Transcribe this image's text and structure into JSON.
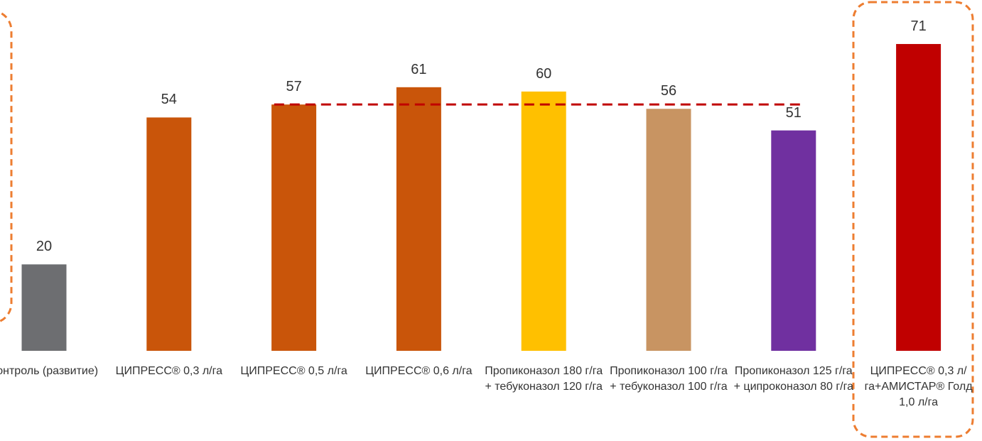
{
  "chart_data": {
    "type": "bar",
    "categories": [
      "Контроль (развитие)",
      "ЦИПРЕСС® 0,3 л/га",
      "ЦИПРЕСС® 0,5 л/га",
      "ЦИПРЕСС® 0,6 л/га",
      "Пропиконазол 180 г/га + тебуконазол 120 г/га",
      "Пропиконазол 100 г/га + тебуконазол 100 г/га",
      "Пропиконазол 125 г/га + ципроконазол 80 г/га",
      "ЦИПРЕСС® 0,3 л/га+АМИСТАР® Голд 1,0 л/га"
    ],
    "values": [
      20,
      54,
      57,
      61,
      60,
      56,
      51,
      71
    ],
    "colors": [
      "#6d6e71",
      "#c9550a",
      "#c9550a",
      "#c9550a",
      "#ffc000",
      "#c89462",
      "#7030a0",
      "#c00000"
    ],
    "reference_line": {
      "value": 57,
      "color": "#c00000"
    }
  }
}
